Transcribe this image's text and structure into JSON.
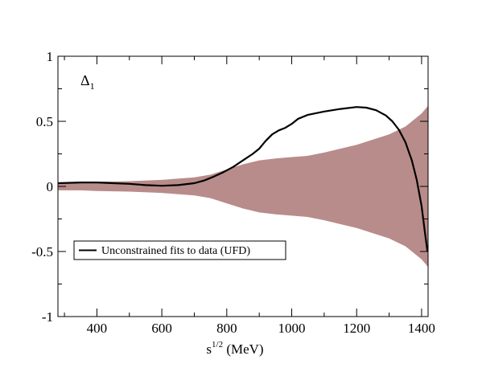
{
  "chart_data": {
    "type": "line",
    "xlabel": {
      "base": "s",
      "superscript": "1/2",
      "rest": " (MeV)"
    },
    "ylabel": "",
    "xlim": [
      280,
      1420
    ],
    "ylim": [
      -1,
      1
    ],
    "x_ticks": [
      400,
      600,
      800,
      1000,
      1200,
      1400
    ],
    "x_tick_labels": [
      "400",
      "600",
      "800",
      "1000",
      "1200",
      "1400"
    ],
    "y_ticks": [
      -1,
      -0.5,
      0,
      0.5,
      1
    ],
    "y_tick_labels": [
      "-1",
      "-0.5",
      "0",
      "0.5",
      "1"
    ],
    "grid": false,
    "annotation": {
      "symbol": "Δ",
      "subscript": "1"
    },
    "legend": {
      "position": "lower-left",
      "entries": [
        "Unconstrained fits to data (UFD)"
      ]
    },
    "colors": {
      "band": "#b88c8a",
      "line": "#000000"
    },
    "band": {
      "x": [
        280,
        350,
        400,
        500,
        600,
        700,
        750,
        800,
        850,
        900,
        950,
        1000,
        1050,
        1100,
        1150,
        1200,
        1250,
        1300,
        1350,
        1380,
        1400,
        1420
      ],
      "upper": [
        0.03,
        0.03,
        0.035,
        0.04,
        0.05,
        0.07,
        0.09,
        0.13,
        0.17,
        0.2,
        0.215,
        0.225,
        0.235,
        0.26,
        0.29,
        0.32,
        0.36,
        0.4,
        0.46,
        0.52,
        0.56,
        0.62
      ],
      "lower": [
        -0.03,
        -0.03,
        -0.035,
        -0.04,
        -0.05,
        -0.07,
        -0.09,
        -0.13,
        -0.17,
        -0.2,
        -0.215,
        -0.225,
        -0.235,
        -0.26,
        -0.29,
        -0.32,
        -0.36,
        -0.4,
        -0.46,
        -0.52,
        -0.56,
        -0.62
      ]
    },
    "series": [
      {
        "name": "Unconstrained fits to data (UFD)",
        "x": [
          280,
          350,
          400,
          450,
          500,
          550,
          600,
          650,
          700,
          730,
          760,
          790,
          820,
          850,
          880,
          900,
          920,
          940,
          960,
          980,
          1000,
          1020,
          1050,
          1100,
          1150,
          1200,
          1230,
          1260,
          1290,
          1310,
          1330,
          1350,
          1370,
          1385,
          1400,
          1410,
          1418
        ],
        "y": [
          0.025,
          0.03,
          0.03,
          0.025,
          0.02,
          0.01,
          0.005,
          0.01,
          0.025,
          0.045,
          0.075,
          0.11,
          0.15,
          0.2,
          0.25,
          0.29,
          0.35,
          0.4,
          0.43,
          0.45,
          0.48,
          0.52,
          0.55,
          0.575,
          0.595,
          0.61,
          0.605,
          0.585,
          0.545,
          0.5,
          0.435,
          0.34,
          0.2,
          0.05,
          -0.15,
          -0.35,
          -0.5
        ]
      }
    ]
  }
}
